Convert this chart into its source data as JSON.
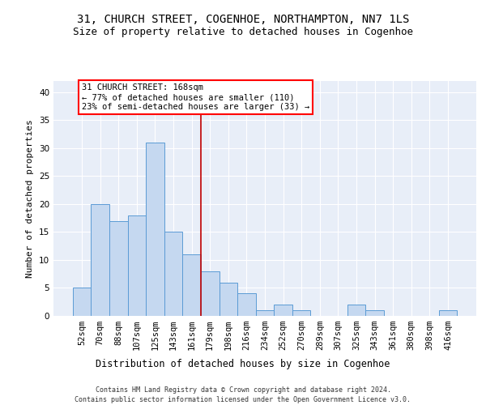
{
  "title1": "31, CHURCH STREET, COGENHOE, NORTHAMPTON, NN7 1LS",
  "title2": "Size of property relative to detached houses in Cogenhoe",
  "xlabel": "Distribution of detached houses by size in Cogenhoe",
  "ylabel": "Number of detached properties",
  "bin_labels": [
    "52sqm",
    "70sqm",
    "88sqm",
    "107sqm",
    "125sqm",
    "143sqm",
    "161sqm",
    "179sqm",
    "198sqm",
    "216sqm",
    "234sqm",
    "252sqm",
    "270sqm",
    "289sqm",
    "307sqm",
    "325sqm",
    "343sqm",
    "361sqm",
    "380sqm",
    "398sqm",
    "416sqm"
  ],
  "bar_values": [
    5,
    20,
    17,
    18,
    31,
    15,
    11,
    8,
    6,
    4,
    1,
    2,
    1,
    0,
    0,
    2,
    1,
    0,
    0,
    0,
    1
  ],
  "bar_color": "#c5d8f0",
  "bar_edge_color": "#5b9bd5",
  "annotation_line1": "31 CHURCH STREET: 168sqm",
  "annotation_line2": "← 77% of detached houses are smaller (110)",
  "annotation_line3": "23% of semi-detached houses are larger (33) →",
  "vline_x": 6.5,
  "vline_color": "#c00000",
  "ylim": [
    0,
    42
  ],
  "yticks": [
    0,
    5,
    10,
    15,
    20,
    25,
    30,
    35,
    40
  ],
  "plot_bg_color": "#e8eef8",
  "footer1": "Contains HM Land Registry data © Crown copyright and database right 2024.",
  "footer2": "Contains public sector information licensed under the Open Government Licence v3.0.",
  "title1_fontsize": 10,
  "title2_fontsize": 9,
  "annotation_fontsize": 7.5,
  "xlabel_fontsize": 8.5,
  "ylabel_fontsize": 8,
  "tick_fontsize": 7.5,
  "footer_fontsize": 6
}
